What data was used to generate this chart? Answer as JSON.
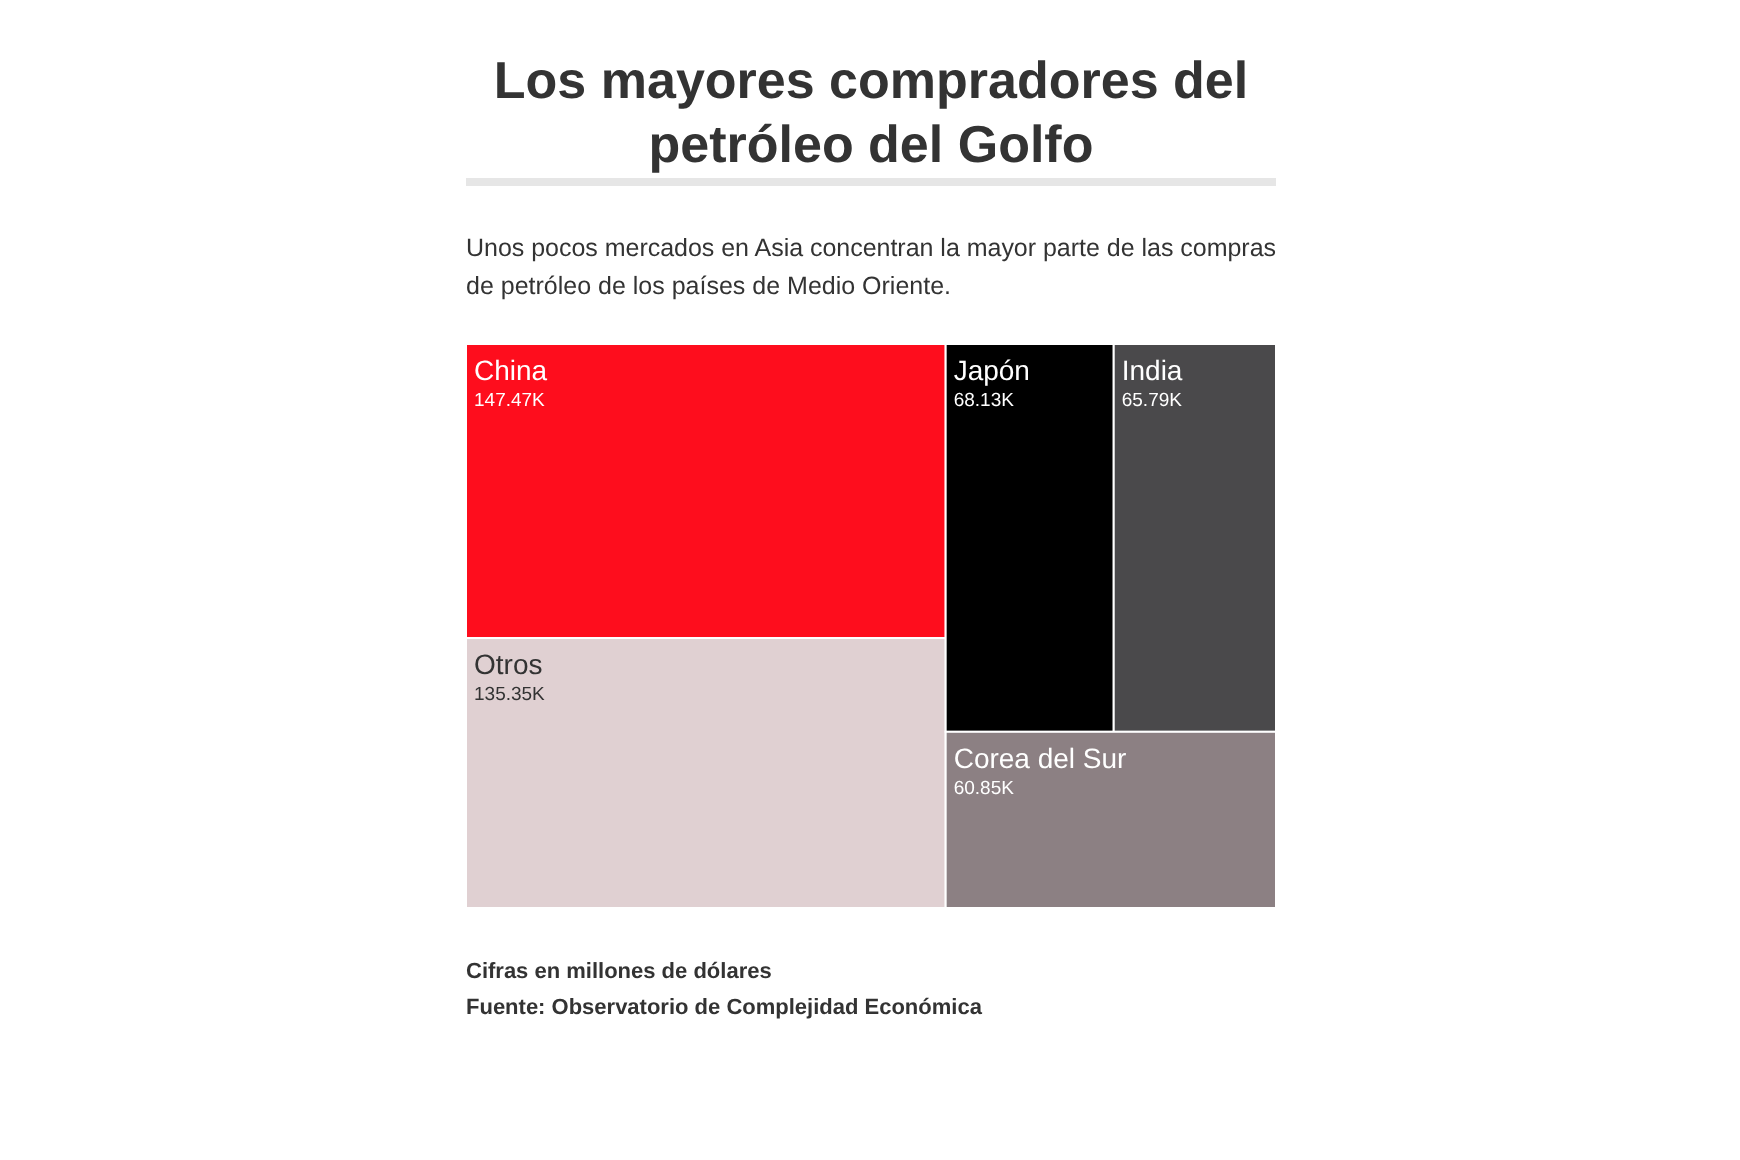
{
  "chart_data": {
    "type": "other",
    "title": "Los mayores compradores del petróleo del Golfo",
    "subtitle": "Unos pocos mercados en Asia concentran la mayor parte de las compras de petróleo de los países de Medio Oriente.",
    "categories": [
      "China",
      "Otros",
      "Japón",
      "India",
      "Corea del Sur"
    ],
    "values": [
      147470,
      135350,
      68130,
      65790,
      60850
    ],
    "value_labels": [
      "147.47K",
      "135.35K",
      "68.13K",
      "65.79K",
      "60.85K"
    ],
    "colors": [
      "#fe0d1d",
      "#e0d0d2",
      "#000000",
      "#4a494b",
      "#8c8083"
    ],
    "annotations": [
      "Cifras en millones de dólares",
      "Fuente: Observatorio de Complejidad Económica"
    ]
  }
}
